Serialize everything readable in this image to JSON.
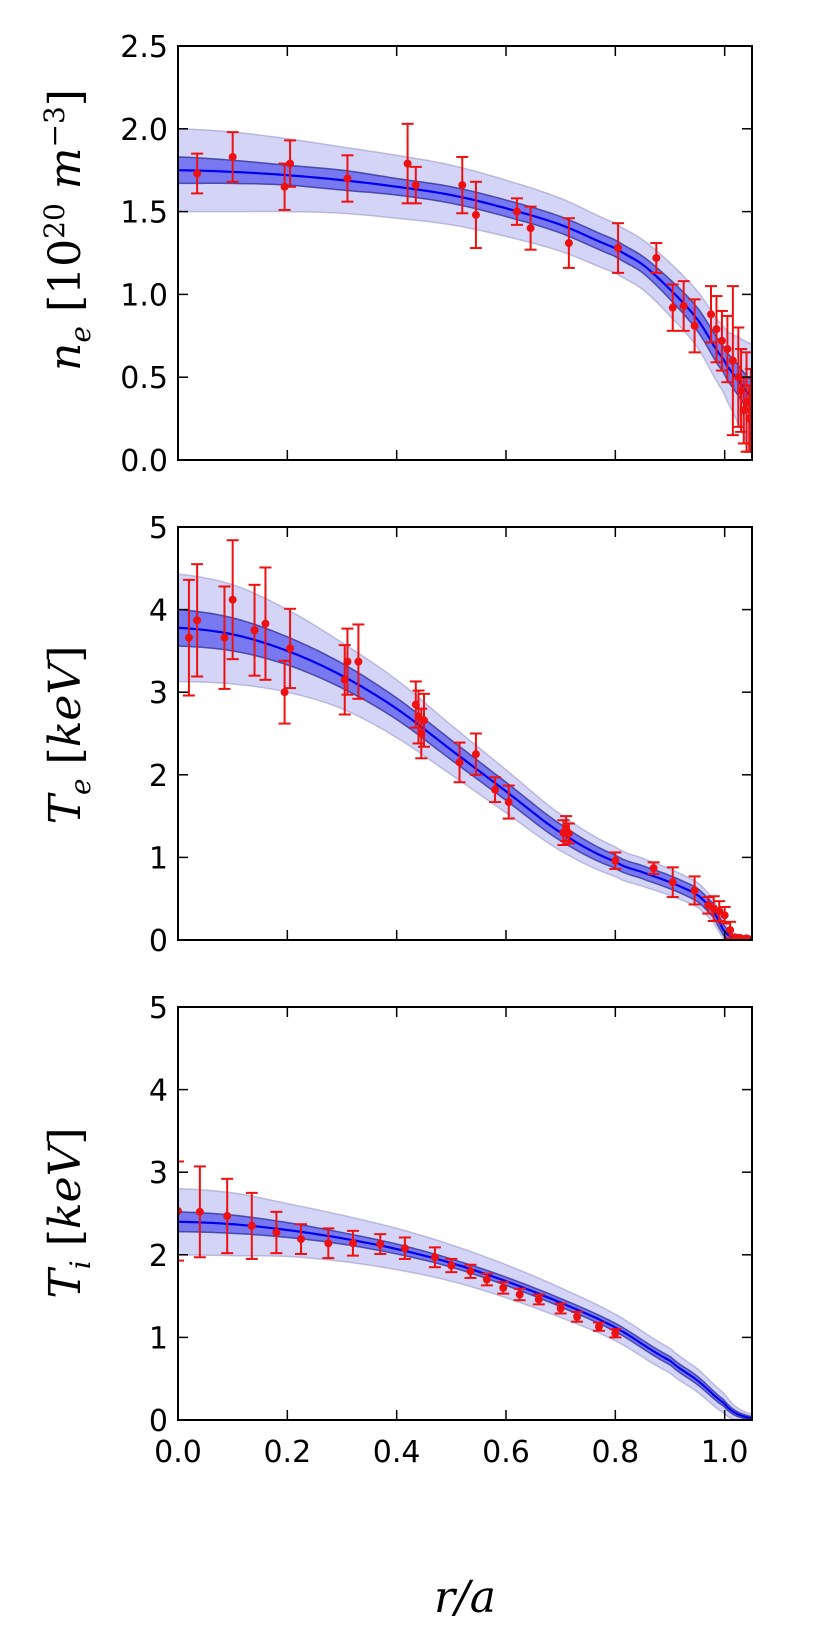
{
  "colors": {
    "fit": "#0000ee",
    "inner_band": "#5a5aee",
    "outer_band": "#ccccf5",
    "data": "#ee1111"
  },
  "chart_data": [
    {
      "type": "line",
      "ylabel": "n_e [10^20 m^-3]",
      "ylabel_parts": {
        "sym": "n",
        "sub": "e",
        "unit_pre": " [10",
        "exp1": "20",
        "unit_mid": " m",
        "exp2": "−3",
        "unit_post": "]"
      },
      "xlim": [
        0,
        1.05
      ],
      "ylim": [
        0,
        2.5
      ],
      "yticks": [
        0.0,
        0.5,
        1.0,
        1.5,
        2.0,
        2.5
      ],
      "ytick_labels": [
        "0.0",
        "0.5",
        "1.0",
        "1.5",
        "2.0",
        "2.5"
      ],
      "fit": {
        "x": [
          0,
          0.1,
          0.2,
          0.3,
          0.4,
          0.5,
          0.6,
          0.7,
          0.8,
          0.85,
          0.9,
          0.95,
          1.0,
          1.02,
          1.05
        ],
        "y": [
          1.75,
          1.74,
          1.72,
          1.69,
          1.65,
          1.6,
          1.52,
          1.42,
          1.28,
          1.18,
          1.03,
          0.85,
          0.6,
          0.5,
          0.38
        ],
        "inner_half_width": [
          0.08,
          0.07,
          0.06,
          0.06,
          0.05,
          0.05,
          0.05,
          0.05,
          0.05,
          0.05,
          0.06,
          0.07,
          0.08,
          0.09,
          0.1
        ],
        "outer_half_width": [
          0.25,
          0.24,
          0.22,
          0.2,
          0.19,
          0.18,
          0.17,
          0.16,
          0.15,
          0.15,
          0.16,
          0.17,
          0.2,
          0.25,
          0.32
        ]
      },
      "points": [
        {
          "x": 0.035,
          "y": 1.73,
          "err": 0.12
        },
        {
          "x": 0.1,
          "y": 1.83,
          "err": 0.15
        },
        {
          "x": 0.195,
          "y": 1.65,
          "err": 0.14
        },
        {
          "x": 0.205,
          "y": 1.79,
          "err": 0.14
        },
        {
          "x": 0.31,
          "y": 1.7,
          "err": 0.14
        },
        {
          "x": 0.42,
          "y": 1.79,
          "err": 0.24
        },
        {
          "x": 0.435,
          "y": 1.66,
          "err": 0.11
        },
        {
          "x": 0.52,
          "y": 1.66,
          "err": 0.17
        },
        {
          "x": 0.545,
          "y": 1.48,
          "err": 0.2
        },
        {
          "x": 0.62,
          "y": 1.5,
          "err": 0.08
        },
        {
          "x": 0.645,
          "y": 1.4,
          "err": 0.13
        },
        {
          "x": 0.715,
          "y": 1.31,
          "err": 0.15
        },
        {
          "x": 0.805,
          "y": 1.28,
          "err": 0.15
        },
        {
          "x": 0.875,
          "y": 1.22,
          "err": 0.09
        },
        {
          "x": 0.905,
          "y": 0.92,
          "err": 0.14
        },
        {
          "x": 0.925,
          "y": 0.93,
          "err": 0.15
        },
        {
          "x": 0.945,
          "y": 0.81,
          "err": 0.16
        },
        {
          "x": 0.975,
          "y": 0.88,
          "err": 0.17
        },
        {
          "x": 0.985,
          "y": 0.79,
          "err": 0.2
        },
        {
          "x": 0.995,
          "y": 0.72,
          "err": 0.18
        },
        {
          "x": 1.005,
          "y": 0.67,
          "err": 0.2
        },
        {
          "x": 1.015,
          "y": 0.6,
          "err": 0.45
        },
        {
          "x": 1.025,
          "y": 0.5,
          "err": 0.3
        },
        {
          "x": 1.03,
          "y": 0.42,
          "err": 0.25
        },
        {
          "x": 1.035,
          "y": 0.3,
          "err": 0.2
        },
        {
          "x": 1.04,
          "y": 0.35,
          "err": 0.3
        },
        {
          "x": 1.045,
          "y": 0.25,
          "err": 0.2
        },
        {
          "x": 1.048,
          "y": 0.3,
          "err": 0.25
        }
      ]
    },
    {
      "type": "line",
      "ylabel": "T_e [keV]",
      "ylabel_parts": {
        "sym": "T",
        "sub": "e",
        "unit_pre": " [",
        "unit_mid": "keV",
        "unit_post": "]"
      },
      "xlim": [
        0,
        1.05
      ],
      "ylim": [
        0,
        5
      ],
      "yticks": [
        0,
        1,
        2,
        3,
        4,
        5
      ],
      "ytick_labels": [
        "0",
        "1",
        "2",
        "3",
        "4",
        "5"
      ],
      "fit": {
        "x": [
          0,
          0.1,
          0.2,
          0.3,
          0.4,
          0.5,
          0.6,
          0.7,
          0.8,
          0.85,
          0.9,
          0.95,
          0.98,
          1.0,
          1.02,
          1.05
        ],
        "y": [
          3.78,
          3.7,
          3.5,
          3.2,
          2.8,
          2.3,
          1.8,
          1.3,
          0.95,
          0.82,
          0.7,
          0.55,
          0.35,
          0.1,
          0.02,
          0.01
        ],
        "inner_half_width": [
          0.22,
          0.2,
          0.17,
          0.15,
          0.13,
          0.12,
          0.11,
          0.1,
          0.08,
          0.08,
          0.08,
          0.08,
          0.08,
          0.06,
          0.03,
          0.02
        ],
        "outer_half_width": [
          0.65,
          0.6,
          0.5,
          0.4,
          0.35,
          0.3,
          0.26,
          0.22,
          0.18,
          0.17,
          0.16,
          0.15,
          0.14,
          0.1,
          0.05,
          0.04
        ]
      },
      "points": [
        {
          "x": 0.02,
          "y": 3.66,
          "err": 0.7
        },
        {
          "x": 0.035,
          "y": 3.87,
          "err": 0.68
        },
        {
          "x": 0.085,
          "y": 3.66,
          "err": 0.62
        },
        {
          "x": 0.1,
          "y": 4.12,
          "err": 0.72
        },
        {
          "x": 0.14,
          "y": 3.75,
          "err": 0.55
        },
        {
          "x": 0.16,
          "y": 3.83,
          "err": 0.68
        },
        {
          "x": 0.195,
          "y": 3.0,
          "err": 0.38
        },
        {
          "x": 0.205,
          "y": 3.53,
          "err": 0.48
        },
        {
          "x": 0.305,
          "y": 3.15,
          "err": 0.42
        },
        {
          "x": 0.31,
          "y": 3.37,
          "err": 0.4
        },
        {
          "x": 0.33,
          "y": 3.37,
          "err": 0.45
        },
        {
          "x": 0.435,
          "y": 2.85,
          "err": 0.28
        },
        {
          "x": 0.44,
          "y": 2.7,
          "err": 0.32
        },
        {
          "x": 0.445,
          "y": 2.5,
          "err": 0.3
        },
        {
          "x": 0.45,
          "y": 2.66,
          "err": 0.32
        },
        {
          "x": 0.515,
          "y": 2.15,
          "err": 0.24
        },
        {
          "x": 0.545,
          "y": 2.25,
          "err": 0.25
        },
        {
          "x": 0.58,
          "y": 1.82,
          "err": 0.15
        },
        {
          "x": 0.605,
          "y": 1.67,
          "err": 0.2
        },
        {
          "x": 0.705,
          "y": 1.3,
          "err": 0.15
        },
        {
          "x": 0.71,
          "y": 1.35,
          "err": 0.15
        },
        {
          "x": 0.715,
          "y": 1.29,
          "err": 0.12
        },
        {
          "x": 0.8,
          "y": 0.96,
          "err": 0.1
        },
        {
          "x": 0.87,
          "y": 0.87,
          "err": 0.07
        },
        {
          "x": 0.905,
          "y": 0.7,
          "err": 0.18
        },
        {
          "x": 0.945,
          "y": 0.6,
          "err": 0.17
        },
        {
          "x": 0.97,
          "y": 0.42,
          "err": 0.1
        },
        {
          "x": 0.98,
          "y": 0.38,
          "err": 0.15
        },
        {
          "x": 0.99,
          "y": 0.35,
          "err": 0.12
        },
        {
          "x": 1.0,
          "y": 0.3,
          "err": 0.1
        },
        {
          "x": 1.01,
          "y": 0.12,
          "err": 0.1
        },
        {
          "x": 1.02,
          "y": 0.03,
          "err": 0.03
        },
        {
          "x": 1.03,
          "y": 0.02,
          "err": 0.02
        },
        {
          "x": 1.04,
          "y": 0.02,
          "err": 0.02
        }
      ]
    },
    {
      "type": "line",
      "ylabel": "T_i [keV]",
      "ylabel_parts": {
        "sym": "T",
        "sub": "i",
        "unit_pre": " [",
        "unit_mid": "keV",
        "unit_post": "]"
      },
      "xlabel": "r/a",
      "xlim": [
        0,
        1.05
      ],
      "ylim": [
        0,
        5
      ],
      "yticks": [
        0,
        1,
        2,
        3,
        4,
        5
      ],
      "ytick_labels": [
        "0",
        "1",
        "2",
        "3",
        "4",
        "5"
      ],
      "xticks": [
        0.0,
        0.2,
        0.4,
        0.6,
        0.8,
        1.0
      ],
      "xtick_labels": [
        "0.0",
        "0.2",
        "0.4",
        "0.6",
        "0.8",
        "1.0"
      ],
      "fit": {
        "x": [
          0,
          0.1,
          0.2,
          0.3,
          0.4,
          0.5,
          0.6,
          0.7,
          0.8,
          0.9,
          0.95,
          1.0,
          1.02,
          1.05
        ],
        "y": [
          2.4,
          2.37,
          2.3,
          2.2,
          2.07,
          1.9,
          1.68,
          1.42,
          1.12,
          0.72,
          0.48,
          0.2,
          0.08,
          0.02
        ],
        "inner_half_width": [
          0.12,
          0.11,
          0.09,
          0.07,
          0.06,
          0.05,
          0.05,
          0.05,
          0.05,
          0.05,
          0.05,
          0.04,
          0.03,
          0.02
        ],
        "outer_half_width": [
          0.4,
          0.38,
          0.32,
          0.28,
          0.25,
          0.22,
          0.2,
          0.18,
          0.16,
          0.15,
          0.14,
          0.12,
          0.08,
          0.05
        ]
      },
      "points": [
        {
          "x": 0.0,
          "y": 2.53,
          "err": 0.6
        },
        {
          "x": 0.04,
          "y": 2.52,
          "err": 0.55
        },
        {
          "x": 0.09,
          "y": 2.47,
          "err": 0.45
        },
        {
          "x": 0.135,
          "y": 2.35,
          "err": 0.4
        },
        {
          "x": 0.18,
          "y": 2.27,
          "err": 0.25
        },
        {
          "x": 0.225,
          "y": 2.19,
          "err": 0.18
        },
        {
          "x": 0.275,
          "y": 2.14,
          "err": 0.18
        },
        {
          "x": 0.32,
          "y": 2.14,
          "err": 0.15
        },
        {
          "x": 0.37,
          "y": 2.13,
          "err": 0.12
        },
        {
          "x": 0.415,
          "y": 2.08,
          "err": 0.13
        },
        {
          "x": 0.47,
          "y": 1.97,
          "err": 0.12
        },
        {
          "x": 0.5,
          "y": 1.87,
          "err": 0.08
        },
        {
          "x": 0.535,
          "y": 1.8,
          "err": 0.08
        },
        {
          "x": 0.565,
          "y": 1.7,
          "err": 0.07
        },
        {
          "x": 0.595,
          "y": 1.6,
          "err": 0.07
        },
        {
          "x": 0.625,
          "y": 1.52,
          "err": 0.07
        },
        {
          "x": 0.66,
          "y": 1.46,
          "err": 0.06
        },
        {
          "x": 0.7,
          "y": 1.35,
          "err": 0.06
        },
        {
          "x": 0.73,
          "y": 1.25,
          "err": 0.06
        },
        {
          "x": 0.77,
          "y": 1.13,
          "err": 0.05
        },
        {
          "x": 0.8,
          "y": 1.05,
          "err": 0.05
        }
      ]
    }
  ]
}
